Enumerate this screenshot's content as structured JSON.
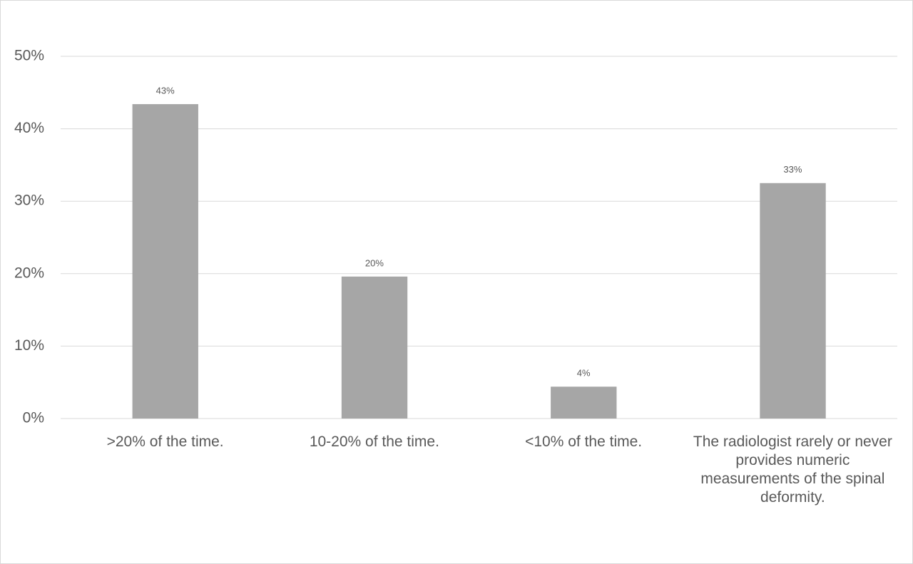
{
  "chart_data": {
    "type": "bar",
    "categories": [
      ">20% of the time.",
      "10-20% of the time.",
      "<10% of the time.",
      "The radiologist rarely or never provides numeric measurements of the spinal deformity."
    ],
    "values": [
      43.4,
      19.6,
      4.4,
      32.5
    ],
    "value_labels": [
      "43%",
      "20%",
      "4%",
      "33%"
    ],
    "color": "#a6a6a6",
    "ylim": [
      0,
      50
    ],
    "yticks": [
      {
        "value": 0,
        "label": "0%"
      },
      {
        "value": 10,
        "label": "10%"
      },
      {
        "value": 20,
        "label": "20%"
      },
      {
        "value": 30,
        "label": "30%"
      },
      {
        "value": 40,
        "label": "40%"
      },
      {
        "value": 50,
        "label": "50%"
      }
    ],
    "grid": true
  }
}
